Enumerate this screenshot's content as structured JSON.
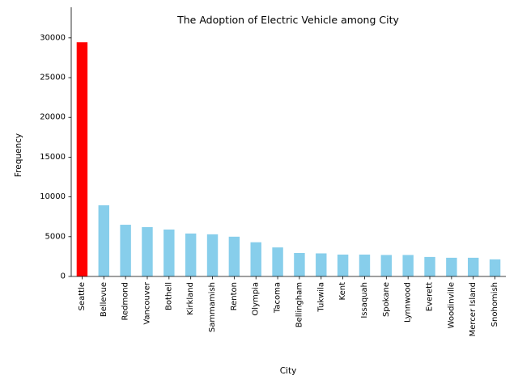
{
  "chart_data": {
    "type": "bar",
    "title": "The Adoption of Electric Vehicle among City",
    "xlabel": "City",
    "ylabel": "Frequency",
    "ylim": [
      0,
      31000
    ],
    "yticks": [
      0,
      5000,
      10000,
      15000,
      20000,
      25000,
      30000
    ],
    "categories": [
      "Seattle",
      "Bellevue",
      "Redmond",
      "Vancouver",
      "Bothell",
      "Kirkland",
      "Sammamish",
      "Renton",
      "Olympia",
      "Tacoma",
      "Bellingham",
      "Tukwila",
      "Kent",
      "Issaquah",
      "Spokane",
      "Lynnwood",
      "Everett",
      "Woodinville",
      "Mercer Island",
      "Snohomish"
    ],
    "values": [
      29450,
      8950,
      6500,
      6200,
      5900,
      5400,
      5300,
      5000,
      4300,
      3650,
      2950,
      2900,
      2750,
      2750,
      2700,
      2700,
      2450,
      2350,
      2350,
      2150
    ],
    "colors": {
      "highlight": "#ff0000",
      "default": "#87ceeb",
      "axis": "#000000"
    },
    "highlight_index": 0,
    "grid": false,
    "spines": [
      "left",
      "bottom"
    ]
  }
}
